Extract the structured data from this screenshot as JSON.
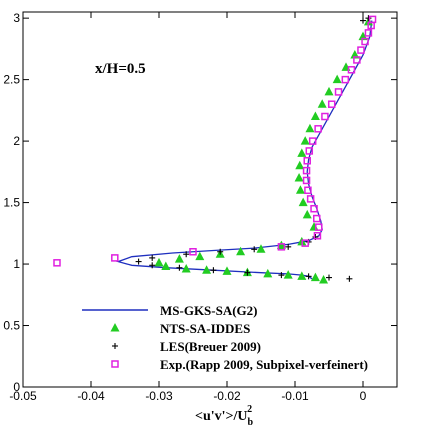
{
  "chart_data": {
    "type": "scatter",
    "annotation": "x/H=0.5",
    "xlabel": {
      "main": "<u'v'>/U",
      "sub": "b",
      "sup": "2"
    },
    "ylabel": "",
    "xlim": [
      -0.05,
      0.005
    ],
    "ylim": [
      0,
      3.05
    ],
    "x_ticks": [
      -0.05,
      -0.04,
      -0.03,
      -0.02,
      -0.01,
      0
    ],
    "x_tick_labels": [
      "-0.05",
      "-0.04",
      "-0.03",
      "-0.02",
      "-0.01",
      "0"
    ],
    "y_ticks": [
      0,
      0.5,
      1,
      1.5,
      2,
      2.5,
      3
    ],
    "y_tick_labels": [
      "0",
      "0.5",
      "1",
      "1.5",
      "2",
      "2.5",
      "3"
    ],
    "legend_position": "bottom-right",
    "colors": {
      "line": "#1f2fbf",
      "triangle": "#22cc22",
      "cross": "#000000",
      "square": "#e020e0"
    },
    "series": [
      {
        "name": "MS-GKS-SA(G2)",
        "kind": "line",
        "x": [
          -0.0075,
          -0.008,
          -0.009,
          -0.011,
          -0.015,
          -0.022,
          -0.029,
          -0.034,
          -0.036,
          -0.034,
          -0.028,
          -0.022,
          -0.016,
          -0.011,
          -0.008,
          -0.0065,
          -0.006,
          -0.0062,
          -0.0068,
          -0.0075,
          -0.008,
          -0.0082,
          -0.008,
          -0.0075,
          -0.006,
          -0.0045,
          -0.003,
          -0.0015,
          0,
          0.001,
          0.0013
        ],
        "y": [
          0.88,
          0.9,
          0.91,
          0.92,
          0.93,
          0.95,
          0.97,
          0.99,
          1.02,
          1.06,
          1.09,
          1.11,
          1.13,
          1.16,
          1.19,
          1.23,
          1.28,
          1.35,
          1.45,
          1.55,
          1.65,
          1.75,
          1.85,
          1.95,
          2.1,
          2.25,
          2.4,
          2.55,
          2.7,
          2.85,
          2.98
        ]
      },
      {
        "name": "NTS-SA-IDDES",
        "kind": "triangle",
        "x": [
          -0.0058,
          -0.007,
          -0.009,
          -0.011,
          -0.014,
          -0.017,
          -0.02,
          -0.023,
          -0.026,
          -0.029,
          -0.03,
          -0.027,
          -0.024,
          -0.021,
          -0.018,
          -0.015,
          -0.012,
          -0.009,
          -0.0072,
          -0.0082,
          -0.0088,
          -0.0092,
          -0.0094,
          -0.0093,
          -0.009,
          -0.0085,
          -0.0078,
          -0.007,
          -0.006,
          -0.005,
          -0.0038,
          -0.0025,
          -0.0012,
          0,
          0.0008
        ],
        "y": [
          0.87,
          0.89,
          0.9,
          0.91,
          0.92,
          0.93,
          0.94,
          0.95,
          0.96,
          0.98,
          1.01,
          1.04,
          1.06,
          1.08,
          1.1,
          1.12,
          1.15,
          1.18,
          1.3,
          1.4,
          1.5,
          1.6,
          1.7,
          1.8,
          1.9,
          2.0,
          2.1,
          2.2,
          2.3,
          2.4,
          2.5,
          2.6,
          2.7,
          2.85,
          2.97
        ]
      },
      {
        "name": "LES(Breuer 2009)",
        "kind": "cross",
        "x": [
          -0.002,
          -0.005,
          -0.008,
          -0.012,
          -0.017,
          -0.022,
          -0.027,
          -0.031,
          -0.033,
          -0.031,
          -0.026,
          -0.021,
          -0.016,
          -0.011,
          -0.008,
          -0.007,
          0,
          0.0008
        ],
        "y": [
          0.88,
          0.89,
          0.9,
          0.91,
          0.93,
          0.95,
          0.97,
          0.99,
          1.02,
          1.05,
          1.08,
          1.1,
          1.12,
          1.14,
          1.18,
          1.22,
          2.98,
          3.0
        ]
      },
      {
        "name": "Exp.(Rapp 2009, Subpixel-verfeinert)",
        "kind": "square",
        "x": [
          -0.045,
          -0.0365,
          -0.025,
          -0.012,
          -0.0085,
          -0.0067,
          -0.0065,
          -0.0068,
          -0.0072,
          -0.0077,
          -0.0081,
          -0.0083,
          -0.0083,
          -0.0082,
          -0.0079,
          -0.0074,
          -0.0066,
          -0.0056,
          -0.0046,
          -0.0036,
          -0.0026,
          -0.0017,
          -0.0009,
          -0.0003,
          0.0003,
          0.0008,
          0.0012,
          0.0014
        ],
        "y": [
          1.01,
          1.05,
          1.1,
          1.14,
          1.17,
          1.23,
          1.3,
          1.37,
          1.45,
          1.53,
          1.6,
          1.68,
          1.76,
          1.84,
          1.92,
          2.0,
          2.1,
          2.2,
          2.3,
          2.4,
          2.5,
          2.58,
          2.66,
          2.74,
          2.81,
          2.88,
          2.94,
          2.99
        ]
      }
    ]
  }
}
